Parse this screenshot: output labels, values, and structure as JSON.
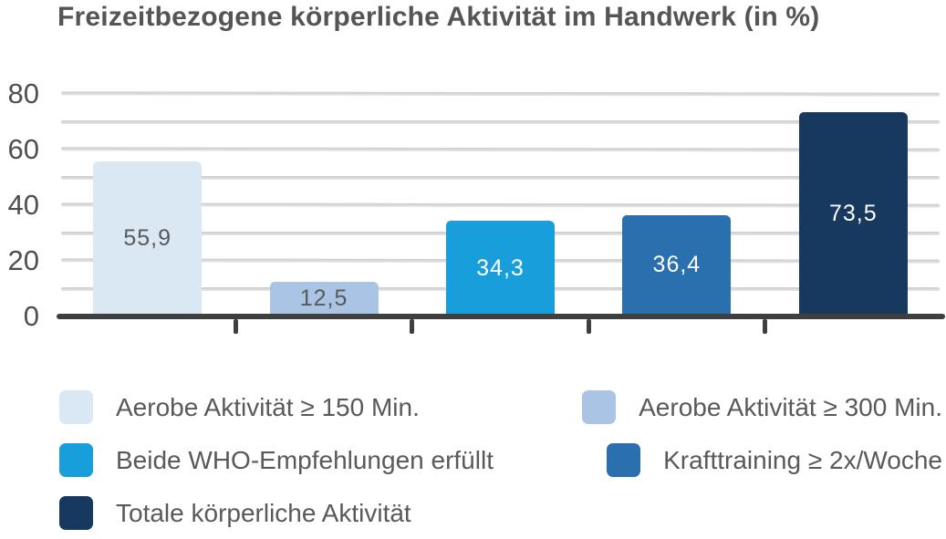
{
  "chart_data": {
    "type": "bar",
    "title": "Freizeitbezogene körperliche Aktivität im Handwerk (in %)",
    "categories": [
      "Aerobe Aktivität ≥ 150 Min.",
      "Aerobe Aktivität ≥ 300 Min.",
      "Beide WHO-Empfehlungen erfüllt",
      "Krafttraining ≥ 2x/Woche",
      "Totale körperliche Aktivität"
    ],
    "values": [
      55.9,
      12.5,
      34.3,
      36.4,
      73.5
    ],
    "value_labels": [
      "55,9",
      "12,5",
      "34,3",
      "36,4",
      "73,5"
    ],
    "bar_colors": [
      "#d9e8f3",
      "#a9c4e5",
      "#189edb",
      "#2a70ae",
      "#17395f"
    ],
    "value_label_colors": [
      "#595959",
      "#595959",
      "#ffffff",
      "#ffffff",
      "#ffffff"
    ],
    "xlabel": "",
    "ylabel": "",
    "ylim": [
      0,
      80
    ],
    "ytick_values": [
      0,
      20,
      40,
      60,
      80
    ],
    "ytick_labels": [
      "0",
      "20",
      "40",
      "60",
      "80"
    ],
    "gridline_values": [
      10,
      20,
      30,
      40,
      50,
      60,
      70,
      80
    ],
    "grid": true,
    "legend_position": "bottom",
    "legend_rows": [
      {
        "left": {
          "label": "Aerobe Aktivität ≥ 150 Min.",
          "color": "#d9e8f3"
        },
        "right": {
          "label": "Aerobe Aktivität ≥ 300 Min.",
          "color": "#a9c4e5"
        }
      },
      {
        "left": {
          "label": "Beide WHO-Empfehlungen erfüllt",
          "color": "#189edb"
        },
        "right": {
          "label": "Krafttraining ≥ 2x/Woche",
          "color": "#2a70ae"
        }
      },
      {
        "left": {
          "label": "Totale körperliche Aktivität",
          "color": "#17395f"
        },
        "right": null
      }
    ],
    "colors": {
      "grid": "#d8d8d8",
      "axis": "#3f3f3f",
      "title_text": "#555555",
      "axis_text": "#4f4f4f",
      "legend_text": "#595959",
      "background": "#ffffff"
    }
  }
}
